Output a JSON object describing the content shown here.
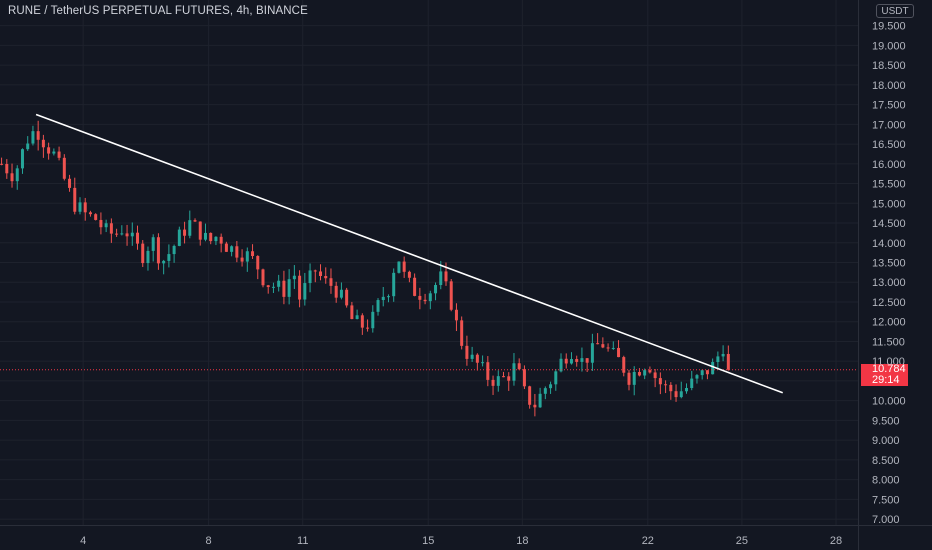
{
  "header": {
    "title": "RUNE / TetherUS PERPETUAL FUTURES, 4h, BINANCE",
    "currency": "USDT"
  },
  "price_tag": {
    "price": "10.784",
    "countdown": "29:14"
  },
  "colors": {
    "background": "#131722",
    "up": "#26a69a",
    "down": "#ef5350",
    "trendline": "#ffffff",
    "price_line": "#f23645"
  },
  "chart_data": {
    "type": "candlestick",
    "title": "RUNE / TetherUS PERPETUAL FUTURES, 4h, BINANCE",
    "ylim": [
      6.85,
      20.15
    ],
    "y_ticks": [
      "7.000",
      "7.500",
      "8.000",
      "8.500",
      "9.000",
      "9.500",
      "10.000",
      "10.500",
      "11.000",
      "11.500",
      "12.000",
      "12.500",
      "13.000",
      "13.500",
      "14.000",
      "14.500",
      "15.000",
      "15.500",
      "16.000",
      "16.500",
      "17.000",
      "17.500",
      "18.000",
      "18.500",
      "19.000",
      "19.500"
    ],
    "x_ticks": [
      {
        "label": "4",
        "day": 4
      },
      {
        "label": "8",
        "day": 8
      },
      {
        "label": "11",
        "day": 11
      },
      {
        "label": "15",
        "day": 15
      },
      {
        "label": "18",
        "day": 18
      },
      {
        "label": "22",
        "day": 22
      },
      {
        "label": "25",
        "day": 25
      },
      {
        "label": "28",
        "day": 28
      }
    ],
    "x_range_days": [
      1.35,
      28.7
    ],
    "last_price": 10.784,
    "trendline": {
      "from": {
        "day": 2.5,
        "price": 17.25
      },
      "to": {
        "day": 26.3,
        "price": 10.2
      }
    },
    "close_path": [
      [
        1.4,
        16.0
      ],
      [
        1.8,
        15.7
      ],
      [
        2.2,
        16.6
      ],
      [
        2.5,
        16.9
      ],
      [
        2.8,
        16.5
      ],
      [
        3.1,
        16.2
      ],
      [
        3.4,
        15.6
      ],
      [
        3.7,
        15.0
      ],
      [
        4.1,
        14.7
      ],
      [
        4.4,
        14.6
      ],
      [
        4.7,
        14.3
      ],
      [
        5.0,
        14.2
      ],
      [
        5.3,
        14.4
      ],
      [
        5.6,
        14.0
      ],
      [
        5.9,
        13.7
      ],
      [
        6.2,
        14.1
      ],
      [
        6.5,
        13.5
      ],
      [
        6.8,
        13.8
      ],
      [
        7.1,
        14.2
      ],
      [
        7.4,
        14.5
      ],
      [
        7.7,
        14.3
      ],
      [
        8.0,
        14.0
      ],
      [
        8.3,
        14.2
      ],
      [
        8.6,
        13.9
      ],
      [
        8.9,
        13.8
      ],
      [
        9.2,
        13.7
      ],
      [
        9.5,
        13.5
      ],
      [
        9.8,
        13.0
      ],
      [
        10.1,
        12.9
      ],
      [
        10.4,
        12.8
      ],
      [
        10.7,
        13.3
      ],
      [
        10.9,
        12.6
      ],
      [
        11.1,
        12.9
      ],
      [
        11.4,
        13.3
      ],
      [
        11.7,
        13.0
      ],
      [
        12.0,
        12.9
      ],
      [
        12.3,
        12.5
      ],
      [
        12.6,
        12.0
      ],
      [
        12.9,
        11.9
      ],
      [
        13.2,
        12.0
      ],
      [
        13.5,
        12.6
      ],
      [
        13.8,
        12.9
      ],
      [
        14.0,
        13.8
      ],
      [
        14.2,
        13.2
      ],
      [
        14.5,
        12.8
      ],
      [
        14.8,
        12.7
      ],
      [
        15.1,
        12.8
      ],
      [
        15.4,
        13.1
      ],
      [
        15.7,
        12.6
      ],
      [
        16.0,
        11.6
      ],
      [
        16.3,
        11.1
      ],
      [
        16.6,
        10.9
      ],
      [
        16.9,
        10.6
      ],
      [
        17.2,
        10.5
      ],
      [
        17.5,
        10.6
      ],
      [
        17.8,
        10.9
      ],
      [
        18.1,
        10.1
      ],
      [
        18.4,
        9.9
      ],
      [
        18.7,
        10.3
      ],
      [
        19.0,
        10.6
      ],
      [
        19.3,
        11.1
      ],
      [
        19.6,
        11.3
      ],
      [
        19.9,
        11.0
      ],
      [
        20.2,
        11.2
      ],
      [
        20.5,
        11.5
      ],
      [
        20.8,
        11.2
      ],
      [
        21.1,
        11.0
      ],
      [
        21.4,
        10.6
      ],
      [
        21.7,
        10.8
      ],
      [
        22.0,
        11.0
      ],
      [
        22.3,
        10.5
      ],
      [
        22.6,
        10.3
      ],
      [
        22.9,
        10.2
      ],
      [
        23.2,
        10.3
      ],
      [
        23.5,
        10.5
      ],
      [
        23.8,
        10.7
      ],
      [
        24.1,
        10.9
      ],
      [
        24.4,
        11.4
      ],
      [
        24.7,
        10.78
      ]
    ]
  }
}
